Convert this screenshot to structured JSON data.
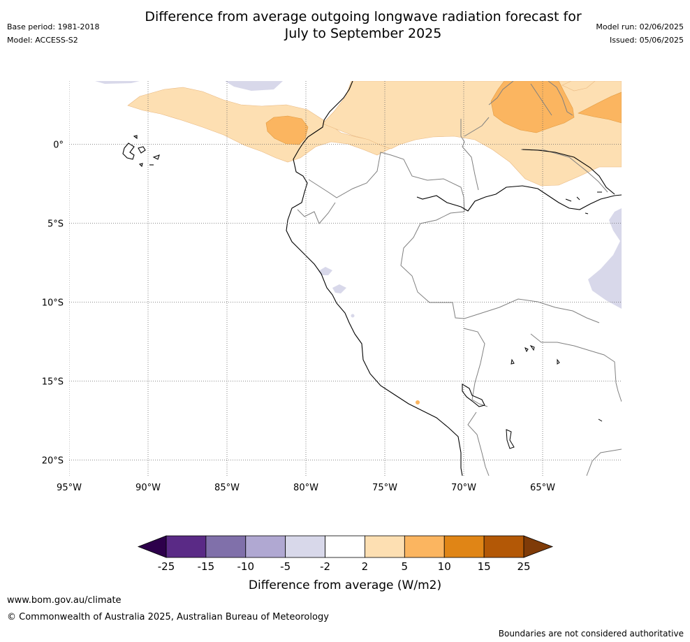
{
  "header": {
    "title_line1": "Difference from average outgoing longwave radiation forecast for",
    "title_line2": "July to September 2025",
    "base_period": "Base period: 1981-2018",
    "model": "Model: ACCESS-S2",
    "model_run": "Model run: 02/06/2025",
    "issued": "Issued: 05/06/2025"
  },
  "map": {
    "lon_labels": [
      "95°W",
      "90°W",
      "85°W",
      "80°W",
      "75°W",
      "70°W",
      "65°W"
    ],
    "lat_labels": [
      "0°",
      "5°S",
      "10°S",
      "15°S",
      "20°S"
    ],
    "lon_values": [
      -95,
      -90,
      -85,
      -80,
      -75,
      -70,
      -65
    ],
    "lat_values": [
      0,
      -5,
      -10,
      -15,
      -20
    ],
    "extent": {
      "lon_min": -95,
      "lon_max": -60,
      "lat_min": -21,
      "lat_max": 4
    }
  },
  "colorbar": {
    "tick_labels": [
      "-25",
      "-15",
      "-10",
      "-5",
      "-2",
      "2",
      "5",
      "10",
      "15",
      "25"
    ],
    "colors": [
      "#5a2a86",
      "#8070aa",
      "#b0a8d2",
      "#d8d8ea",
      "#ffffff",
      "#fddfb2",
      "#fbb560",
      "#e08516",
      "#b35806"
    ],
    "extend_low_color": "#2d004b",
    "extend_high_color": "#7f3b08",
    "label": "Difference from average (W/m2)"
  },
  "footer": {
    "url": "www.bom.gov.au/climate",
    "copyright": "© Commonwealth of Australia 2025, Australian Bureau of Meteorology",
    "disclaimer": "Boundaries are not considered authoritative"
  }
}
